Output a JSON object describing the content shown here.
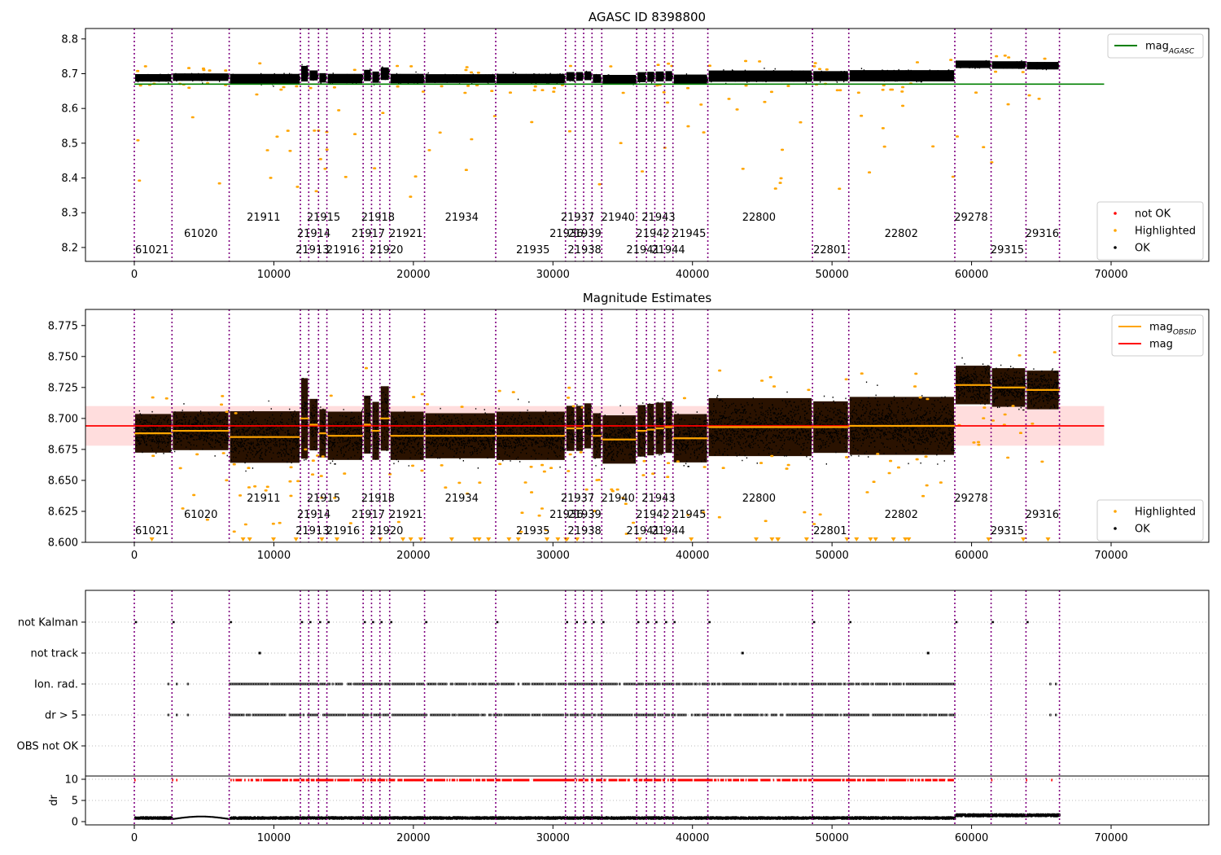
{
  "chart_data": [
    {
      "type": "scatter",
      "title": "AGASC ID 8398800",
      "xlim": [
        -3500,
        77000
      ],
      "ylim": [
        8.16,
        8.83
      ],
      "xticks": [
        0,
        10000,
        20000,
        30000,
        40000,
        50000,
        60000,
        70000
      ],
      "yticks": [
        8.2,
        8.3,
        8.4,
        8.5,
        8.6,
        8.7,
        8.8
      ],
      "ytick_labels": [
        "8.2",
        "8.3",
        "8.4",
        "8.5",
        "8.6",
        "8.7",
        "8.8"
      ],
      "reference_line": {
        "name": "mag",
        "subscript": "AGASC",
        "value": 8.67,
        "x": [
          0,
          69500
        ],
        "color": "#008000"
      },
      "legend_upper": [
        {
          "label": "mag",
          "sub": "AGASC",
          "color": "#008000",
          "kind": "line"
        }
      ],
      "legend_lower": [
        {
          "label": "not OK",
          "color": "#ff0000",
          "kind": "dot"
        },
        {
          "label": "Highlighted",
          "color": "#ffa500",
          "kind": "dot"
        },
        {
          "label": "OK",
          "color": "#000000",
          "kind": "dot"
        }
      ],
      "segments": [
        {
          "x0": 0,
          "x1": 2700,
          "mean": 8.688,
          "spread": 0.012
        },
        {
          "x0": 2700,
          "x1": 6800,
          "mean": 8.69,
          "spread": 0.012
        },
        {
          "x0": 6800,
          "x1": 11900,
          "mean": 8.685,
          "spread": 0.016
        },
        {
          "x0": 11900,
          "x1": 12500,
          "mean": 8.7,
          "spread": 0.025
        },
        {
          "x0": 12500,
          "x1": 13200,
          "mean": 8.695,
          "spread": 0.016
        },
        {
          "x0": 13200,
          "x1": 13800,
          "mean": 8.688,
          "spread": 0.015
        },
        {
          "x0": 13800,
          "x1": 16400,
          "mean": 8.686,
          "spread": 0.015
        },
        {
          "x0": 16400,
          "x1": 17000,
          "mean": 8.695,
          "spread": 0.018
        },
        {
          "x0": 17000,
          "x1": 17600,
          "mean": 8.69,
          "spread": 0.018
        },
        {
          "x0": 17600,
          "x1": 18300,
          "mean": 8.7,
          "spread": 0.02
        },
        {
          "x0": 18300,
          "x1": 20800,
          "mean": 8.686,
          "spread": 0.015
        },
        {
          "x0": 20800,
          "x1": 25900,
          "mean": 8.686,
          "spread": 0.014
        },
        {
          "x0": 25900,
          "x1": 30900,
          "mean": 8.686,
          "spread": 0.015
        },
        {
          "x0": 30900,
          "x1": 31600,
          "mean": 8.692,
          "spread": 0.014
        },
        {
          "x0": 31600,
          "x1": 32200,
          "mean": 8.692,
          "spread": 0.014
        },
        {
          "x0": 32200,
          "x1": 32800,
          "mean": 8.694,
          "spread": 0.014
        },
        {
          "x0": 32800,
          "x1": 33500,
          "mean": 8.686,
          "spread": 0.014
        },
        {
          "x0": 33500,
          "x1": 36000,
          "mean": 8.683,
          "spread": 0.015
        },
        {
          "x0": 36000,
          "x1": 36700,
          "mean": 8.69,
          "spread": 0.016
        },
        {
          "x0": 36700,
          "x1": 37300,
          "mean": 8.691,
          "spread": 0.016
        },
        {
          "x0": 37300,
          "x1": 38000,
          "mean": 8.692,
          "spread": 0.016
        },
        {
          "x0": 38000,
          "x1": 38600,
          "mean": 8.693,
          "spread": 0.016
        },
        {
          "x0": 38600,
          "x1": 41100,
          "mean": 8.684,
          "spread": 0.015
        },
        {
          "x0": 41100,
          "x1": 48600,
          "mean": 8.693,
          "spread": 0.018
        },
        {
          "x0": 48600,
          "x1": 51200,
          "mean": 8.693,
          "spread": 0.016
        },
        {
          "x0": 51200,
          "x1": 58800,
          "mean": 8.694,
          "spread": 0.018
        },
        {
          "x0": 58800,
          "x1": 61400,
          "mean": 8.727,
          "spread": 0.012
        },
        {
          "x0": 61400,
          "x1": 63900,
          "mean": 8.725,
          "spread": 0.012
        },
        {
          "x0": 63900,
          "x1": 66300,
          "mean": 8.723,
          "spread": 0.012
        }
      ],
      "obsid_boundaries": [
        0,
        2700,
        6800,
        11900,
        12500,
        13200,
        13800,
        16400,
        17000,
        17600,
        18300,
        20800,
        25900,
        30900,
        31600,
        32200,
        32800,
        33500,
        36000,
        36700,
        37300,
        38000,
        38600,
        41100,
        48600,
        51200,
        58800,
        61400,
        63900,
        66300
      ]
    },
    {
      "type": "scatter",
      "title": "Magnitude Estimates",
      "xlim": [
        -3500,
        77000
      ],
      "ylim": [
        8.6,
        8.788
      ],
      "xticks": [
        0,
        10000,
        20000,
        30000,
        40000,
        50000,
        60000,
        70000
      ],
      "yticks": [
        8.6,
        8.625,
        8.65,
        8.675,
        8.7,
        8.725,
        8.75,
        8.775
      ],
      "ytick_labels": [
        "8.600",
        "8.625",
        "8.650",
        "8.675",
        "8.700",
        "8.725",
        "8.750",
        "8.775"
      ],
      "mag": {
        "value": 8.694,
        "band": [
          8.678,
          8.71
        ],
        "x": [
          -3500,
          69500
        ],
        "color": "#ff0000",
        "band_color": "#ffdddd"
      },
      "legend_upper": [
        {
          "label": "mag",
          "sub": "OBSID",
          "color": "#ffa500",
          "kind": "line"
        },
        {
          "label": "mag",
          "sub": "",
          "color": "#ff0000",
          "kind": "line"
        }
      ],
      "legend_lower": [
        {
          "label": "Highlighted",
          "color": "#ffa500",
          "kind": "dot"
        },
        {
          "label": "OK",
          "color": "#000000",
          "kind": "dot"
        }
      ]
    },
    {
      "type": "scatter",
      "title": "",
      "xlim": [
        -3500,
        77000
      ],
      "flags_rows": [
        "not Kalman",
        "not track",
        "Ion. rad.",
        "dr > 5",
        "OBS not OK"
      ],
      "dr_yticks": [
        0,
        5,
        10
      ],
      "dr_ylabel": "dr",
      "xticks": [
        0,
        10000,
        20000,
        30000,
        40000,
        50000,
        60000,
        70000
      ]
    }
  ],
  "obsid_labels": [
    {
      "x": 0,
      "row": 2,
      "text": "61021"
    },
    {
      "x": 3500,
      "row": 1,
      "text": "61020"
    },
    {
      "x": 8000,
      "row": 0,
      "text": "21911"
    },
    {
      "x": 11500,
      "row": 2,
      "text": "21913"
    },
    {
      "x": 11600,
      "row": 1,
      "text": "21914"
    },
    {
      "x": 12300,
      "row": 0,
      "text": "21915"
    },
    {
      "x": 13700,
      "row": 2,
      "text": "21916"
    },
    {
      "x": 15500,
      "row": 1,
      "text": "21917"
    },
    {
      "x": 16200,
      "row": 0,
      "text": "21918"
    },
    {
      "x": 16800,
      "row": 2,
      "text": "21920"
    },
    {
      "x": 18200,
      "row": 1,
      "text": "21921"
    },
    {
      "x": 22200,
      "row": 0,
      "text": "21934"
    },
    {
      "x": 27300,
      "row": 2,
      "text": "21935"
    },
    {
      "x": 29700,
      "row": 1,
      "text": "21936"
    },
    {
      "x": 30500,
      "row": 0,
      "text": "21937"
    },
    {
      "x": 31000,
      "row": 2,
      "text": "21938"
    },
    {
      "x": 31000,
      "row": 1,
      "text": "21939"
    },
    {
      "x": 33400,
      "row": 0,
      "text": "21940"
    },
    {
      "x": 35200,
      "row": 2,
      "text": "21941"
    },
    {
      "x": 35900,
      "row": 1,
      "text": "21942"
    },
    {
      "x": 36300,
      "row": 0,
      "text": "21943"
    },
    {
      "x": 37000,
      "row": 2,
      "text": "21944"
    },
    {
      "x": 38500,
      "row": 1,
      "text": "21945"
    },
    {
      "x": 43500,
      "row": 0,
      "text": "22800"
    },
    {
      "x": 48600,
      "row": 2,
      "text": "22801"
    },
    {
      "x": 53700,
      "row": 1,
      "text": "22802"
    },
    {
      "x": 58700,
      "row": 0,
      "text": "29278"
    },
    {
      "x": 61300,
      "row": 2,
      "text": "29315"
    },
    {
      "x": 63800,
      "row": 1,
      "text": "29316"
    }
  ],
  "colors": {
    "ok": "#000000",
    "highlighted": "#ffa500",
    "not_ok": "#ff0000",
    "agasc_line": "#008000",
    "boundary": "#800080",
    "obsid_mean": "#ffa500"
  }
}
